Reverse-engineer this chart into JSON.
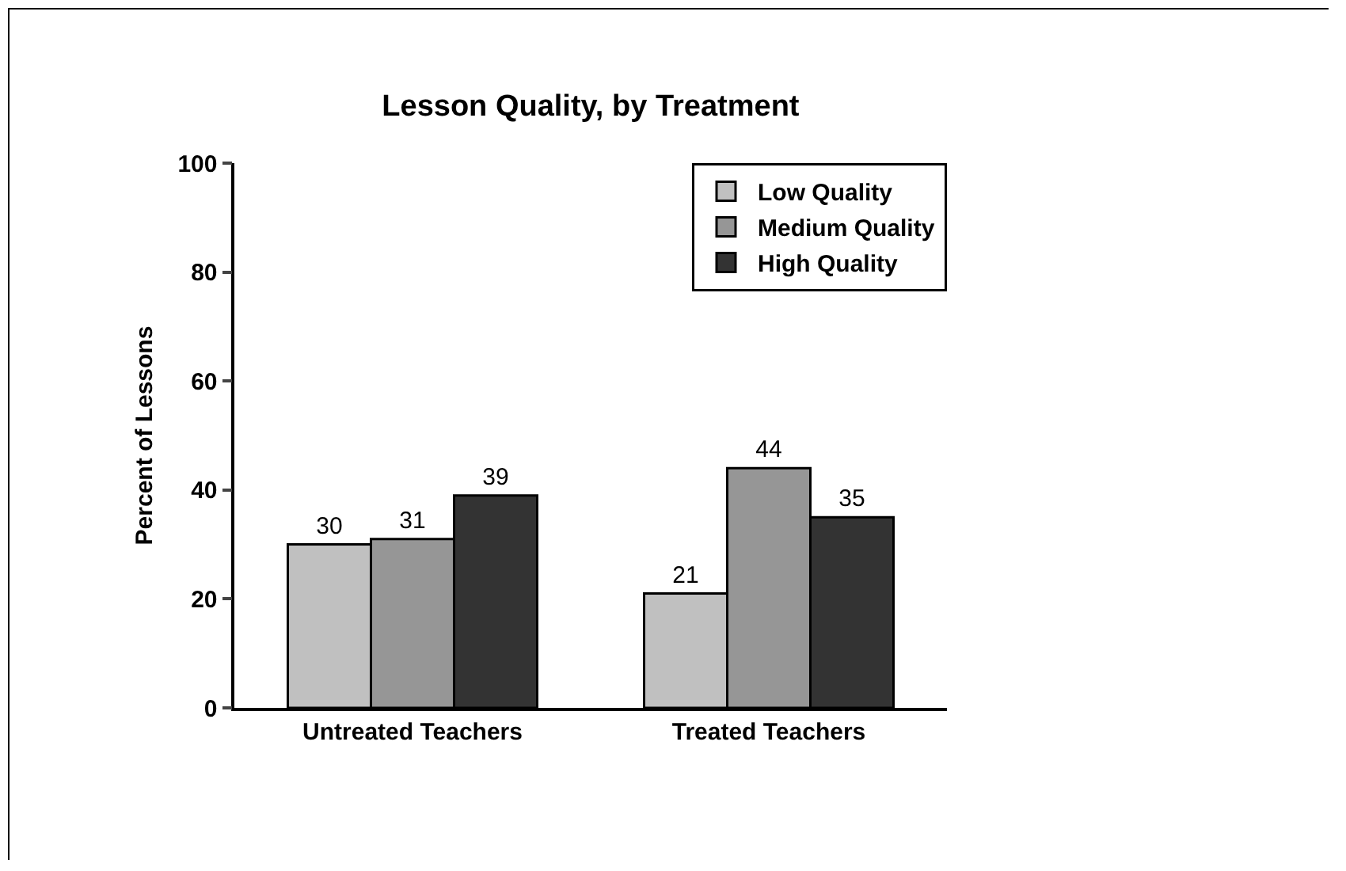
{
  "chart_data": {
    "type": "bar",
    "title": "Lesson Quality, by Treatment",
    "ylabel": "Percent of Lessons",
    "categories": [
      "Untreated Teachers",
      "Treated Teachers"
    ],
    "series": [
      {
        "name": "Low Quality",
        "color": "#c0c0c0",
        "values": [
          30,
          21
        ]
      },
      {
        "name": "Medium Quality",
        "color": "#969696",
        "values": [
          31,
          44
        ]
      },
      {
        "name": "High Quality",
        "color": "#333333",
        "values": [
          39,
          35
        ]
      }
    ],
    "ylim": [
      0,
      100
    ],
    "yticks": [
      0,
      20,
      40,
      60,
      80,
      100
    ],
    "grid": false,
    "legend": "top right",
    "data_labels": true
  }
}
